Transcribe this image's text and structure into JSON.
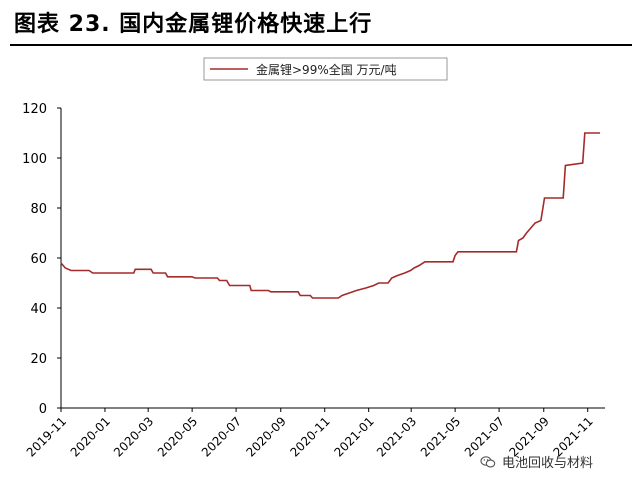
{
  "figure_title": "图表 23. 国内金属锂价格快速上行",
  "watermark": {
    "text": "电池回收与材料",
    "icon": "wechat-icon"
  },
  "chart_data": {
    "type": "line",
    "title": "",
    "xlabel": "",
    "ylabel": "",
    "ylim": [
      0,
      120
    ],
    "yticks": [
      0,
      20,
      40,
      60,
      80,
      100,
      120
    ],
    "legend_position": "top-center",
    "grid": false,
    "line_color": "#a52a2a",
    "xtick_labels": [
      "2019-11",
      "2020-01",
      "2020-03",
      "2020-05",
      "2020-07",
      "2020-09",
      "2020-11",
      "2021-01",
      "2021-03",
      "2021-05",
      "2021-07",
      "2021-09",
      "2021-11"
    ],
    "series": [
      {
        "name": "金属锂>99%全国 万元/吨",
        "points": [
          [
            "2019-11-01",
            58
          ],
          [
            "2019-11-07",
            56
          ],
          [
            "2019-11-15",
            55
          ],
          [
            "2019-12-10",
            55
          ],
          [
            "2019-12-15",
            54
          ],
          [
            "2020-02-10",
            54
          ],
          [
            "2020-02-12",
            55.5
          ],
          [
            "2020-03-05",
            55.5
          ],
          [
            "2020-03-08",
            54
          ],
          [
            "2020-03-25",
            54
          ],
          [
            "2020-03-28",
            52.5
          ],
          [
            "2020-05-01",
            52.5
          ],
          [
            "2020-05-05",
            52
          ],
          [
            "2020-06-05",
            52
          ],
          [
            "2020-06-08",
            51
          ],
          [
            "2020-06-18",
            51
          ],
          [
            "2020-06-22",
            49
          ],
          [
            "2020-07-20",
            49
          ],
          [
            "2020-07-22",
            47
          ],
          [
            "2020-08-15",
            47
          ],
          [
            "2020-08-18",
            46.5
          ],
          [
            "2020-09-25",
            46.5
          ],
          [
            "2020-09-28",
            45
          ],
          [
            "2020-10-12",
            45
          ],
          [
            "2020-10-15",
            44
          ],
          [
            "2020-11-20",
            44
          ],
          [
            "2020-11-25",
            45
          ],
          [
            "2020-12-05",
            46
          ],
          [
            "2020-12-15",
            47
          ],
          [
            "2020-12-28",
            48
          ],
          [
            "2021-01-08",
            49
          ],
          [
            "2021-01-15",
            50
          ],
          [
            "2021-01-28",
            50
          ],
          [
            "2021-02-02",
            52
          ],
          [
            "2021-02-10",
            53
          ],
          [
            "2021-02-20",
            54
          ],
          [
            "2021-02-28",
            55
          ],
          [
            "2021-03-05",
            56
          ],
          [
            "2021-03-12",
            57
          ],
          [
            "2021-03-20",
            58.5
          ],
          [
            "2021-04-28",
            58.5
          ],
          [
            "2021-05-01",
            61
          ],
          [
            "2021-05-05",
            62.5
          ],
          [
            "2021-07-25",
            62.5
          ],
          [
            "2021-07-28",
            67
          ],
          [
            "2021-08-03",
            68
          ],
          [
            "2021-08-08",
            70
          ],
          [
            "2021-08-14",
            72
          ],
          [
            "2021-08-20",
            74
          ],
          [
            "2021-08-28",
            75
          ],
          [
            "2021-09-02",
            84
          ],
          [
            "2021-09-28",
            84
          ],
          [
            "2021-10-01",
            97
          ],
          [
            "2021-10-25",
            98
          ],
          [
            "2021-10-28",
            110
          ],
          [
            "2021-11-18",
            110
          ]
        ]
      }
    ]
  }
}
